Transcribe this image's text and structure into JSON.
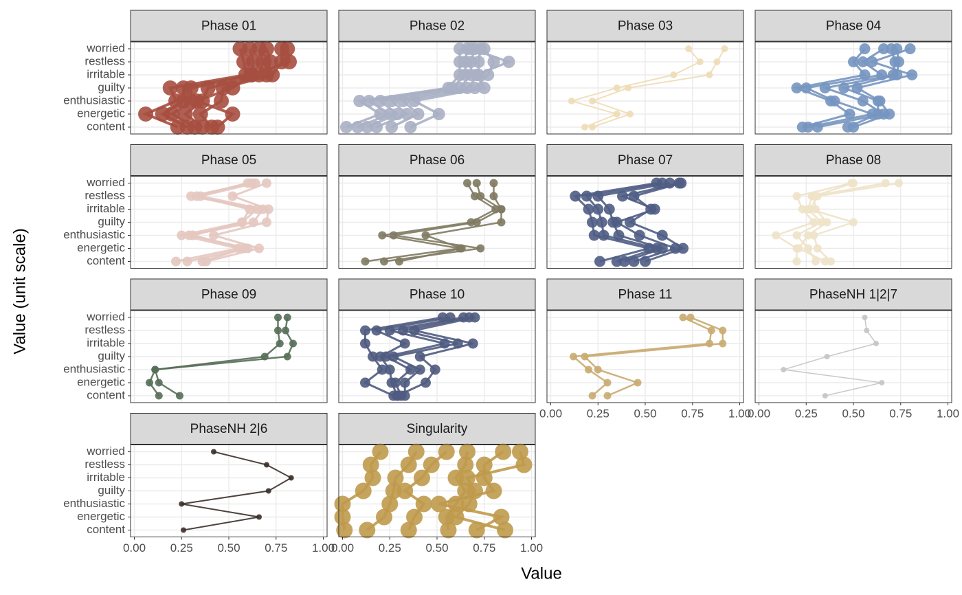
{
  "figure": {
    "x_label": "Value",
    "y_label": "Value (unit scale)"
  },
  "chart_data": [
    {
      "type": "line",
      "title": "Phase 01",
      "color": "#a64f40",
      "categories": [
        "content",
        "energetic",
        "enthusiastic",
        "guilty",
        "irritable",
        "restless",
        "worried"
      ],
      "xlim": [
        -0.02,
        1.02
      ],
      "xticks": [
        {
          "value": 0,
          "label": "0.00"
        },
        {
          "value": 0.25,
          "label": "0.25"
        },
        {
          "value": 0.5,
          "label": "0.50"
        },
        {
          "value": 0.75,
          "label": "0.75"
        },
        {
          "value": 1,
          "label": "1.00"
        }
      ],
      "grid": true,
      "series": [
        {
          "values": [
            0.23,
            0.06,
            0.22,
            0.19,
            0.59,
            0.58,
            0.56
          ]
        },
        {
          "values": [
            0.28,
            0.15,
            0.26,
            0.26,
            0.62,
            0.63,
            0.61
          ]
        },
        {
          "values": [
            0.32,
            0.2,
            0.3,
            0.3,
            0.66,
            0.68,
            0.66
          ]
        },
        {
          "values": [
            0.36,
            0.27,
            0.36,
            0.39,
            0.7,
            0.72,
            0.7
          ]
        },
        {
          "values": [
            0.41,
            0.35,
            0.46,
            0.47,
            0.73,
            0.78,
            0.78
          ]
        },
        {
          "values": [
            0.44,
            0.52,
            0.33,
            0.52,
            0.62,
            0.82,
            0.81
          ]
        }
      ]
    },
    {
      "type": "line",
      "title": "Phase 02",
      "color": "#aab0c4",
      "categories": [
        "content",
        "energetic",
        "enthusiastic",
        "guilty",
        "irritable",
        "restless",
        "worried"
      ],
      "xlim": [
        -0.02,
        1.02
      ],
      "xticks": [
        {
          "value": 0,
          "label": "0.00"
        },
        {
          "value": 0.25,
          "label": "0.25"
        },
        {
          "value": 0.5,
          "label": "0.50"
        },
        {
          "value": 0.75,
          "label": "0.75"
        },
        {
          "value": 1,
          "label": "1.00"
        }
      ],
      "grid": true,
      "series": [
        {
          "values": [
            0.02,
            0.2,
            0.09,
            0.56,
            0.62,
            0.62,
            0.62
          ]
        },
        {
          "values": [
            0.08,
            0.25,
            0.14,
            0.58,
            0.65,
            0.65,
            0.66
          ]
        },
        {
          "values": [
            0.13,
            0.29,
            0.2,
            0.62,
            0.68,
            0.68,
            0.7
          ]
        },
        {
          "values": [
            0.18,
            0.34,
            0.26,
            0.66,
            0.72,
            0.72,
            0.73
          ]
        },
        {
          "values": [
            0.26,
            0.4,
            0.32,
            0.7,
            0.77,
            0.8,
            0.75
          ]
        },
        {
          "values": [
            0.36,
            0.51,
            0.38,
            0.75,
            0.71,
            0.88,
            0.68
          ]
        }
      ]
    },
    {
      "type": "line",
      "title": "Phase 03",
      "color": "#eedcb5",
      "categories": [
        "content",
        "energetic",
        "enthusiastic",
        "guilty",
        "irritable",
        "restless",
        "worried"
      ],
      "xlim": [
        -0.02,
        1.02
      ],
      "xticks": [
        {
          "value": 0,
          "label": "0.00"
        },
        {
          "value": 0.25,
          "label": "0.25"
        },
        {
          "value": 0.5,
          "label": "0.50"
        },
        {
          "value": 0.75,
          "label": "0.75"
        },
        {
          "value": 1,
          "label": "1.00"
        }
      ],
      "grid": true,
      "series": [
        {
          "values": [
            0.18,
            0.35,
            0.11,
            0.35,
            0.65,
            0.79,
            0.73
          ]
        },
        {
          "values": [
            0.22,
            0.42,
            0.22,
            0.41,
            0.84,
            0.88,
            0.92
          ]
        }
      ]
    },
    {
      "type": "line",
      "title": "Phase 04",
      "color": "#7595c0",
      "categories": [
        "content",
        "energetic",
        "enthusiastic",
        "guilty",
        "irritable",
        "restless",
        "worried"
      ],
      "xlim": [
        -0.02,
        1.02
      ],
      "xticks": [
        {
          "value": 0,
          "label": "0.00"
        },
        {
          "value": 0.25,
          "label": "0.25"
        },
        {
          "value": 0.5,
          "label": "0.50"
        },
        {
          "value": 0.75,
          "label": "0.75"
        },
        {
          "value": 1,
          "label": "1.00"
        }
      ],
      "grid": true,
      "series": [
        {
          "values": [
            0.23,
            0.48,
            0.38,
            0.2,
            0.56,
            0.5,
            0.56
          ]
        },
        {
          "values": [
            0.26,
            0.6,
            0.4,
            0.25,
            0.65,
            0.55,
            0.66
          ]
        },
        {
          "values": [
            0.31,
            0.66,
            0.55,
            0.35,
            0.71,
            0.72,
            0.7
          ]
        },
        {
          "values": [
            0.47,
            0.63,
            0.63,
            0.45,
            0.73,
            0.74,
            0.73
          ]
        },
        {
          "values": [
            0.5,
            0.69,
            0.64,
            0.52,
            0.81,
            0.6,
            0.8
          ]
        }
      ]
    },
    {
      "type": "line",
      "title": "Phase 05",
      "color": "#e4c8c0",
      "categories": [
        "content",
        "energetic",
        "enthusiastic",
        "guilty",
        "irritable",
        "restless",
        "worried"
      ],
      "xlim": [
        -0.02,
        1.02
      ],
      "xticks": [
        {
          "value": 0,
          "label": "0.00"
        },
        {
          "value": 0.25,
          "label": "0.25"
        },
        {
          "value": 0.5,
          "label": "0.50"
        },
        {
          "value": 0.75,
          "label": "0.75"
        },
        {
          "value": 1,
          "label": "1.00"
        }
      ],
      "grid": true,
      "series": [
        {
          "values": [
            0.22,
            0.55,
            0.25,
            0.57,
            0.65,
            0.3,
            0.62
          ]
        },
        {
          "values": [
            0.28,
            0.6,
            0.29,
            0.63,
            0.68,
            0.35,
            0.64
          ]
        },
        {
          "values": [
            0.38,
            0.66,
            0.42,
            0.7,
            0.71,
            0.52,
            0.7
          ]
        },
        {
          "values": [
            0.36,
            0.58,
            0.31,
            0.57,
            0.61,
            0.33,
            0.6
          ]
        }
      ]
    },
    {
      "type": "line",
      "title": "Phase 06",
      "color": "#7f7a62",
      "categories": [
        "content",
        "energetic",
        "enthusiastic",
        "guilty",
        "irritable",
        "restless",
        "worried"
      ],
      "xlim": [
        -0.02,
        1.02
      ],
      "xticks": [
        {
          "value": 0,
          "label": "0.00"
        },
        {
          "value": 0.25,
          "label": "0.25"
        },
        {
          "value": 0.5,
          "label": "0.50"
        },
        {
          "value": 0.75,
          "label": "0.75"
        },
        {
          "value": 1,
          "label": "1.00"
        }
      ],
      "grid": true,
      "series": [
        {
          "values": [
            0.12,
            0.62,
            0.21,
            0.68,
            0.81,
            0.7,
            0.66
          ]
        },
        {
          "values": [
            0.22,
            0.73,
            0.27,
            0.71,
            0.84,
            0.73,
            0.71
          ]
        },
        {
          "values": [
            0.3,
            0.63,
            0.44,
            0.84,
            0.84,
            0.8,
            0.8
          ]
        }
      ]
    },
    {
      "type": "line",
      "title": "Phase 07",
      "color": "#4f5d84",
      "categories": [
        "content",
        "energetic",
        "enthusiastic",
        "guilty",
        "irritable",
        "restless",
        "worried"
      ],
      "xlim": [
        -0.02,
        1.02
      ],
      "xticks": [
        {
          "value": 0,
          "label": "0.00"
        },
        {
          "value": 0.25,
          "label": "0.25"
        },
        {
          "value": 0.5,
          "label": "0.50"
        },
        {
          "value": 0.75,
          "label": "0.75"
        },
        {
          "value": 1,
          "label": "1.00"
        }
      ],
      "grid": true,
      "series": [
        {
          "values": [
            0.26,
            0.52,
            0.23,
            0.22,
            0.2,
            0.13,
            0.56
          ]
        },
        {
          "values": [
            0.35,
            0.56,
            0.28,
            0.27,
            0.25,
            0.19,
            0.59
          ]
        },
        {
          "values": [
            0.39,
            0.59,
            0.36,
            0.33,
            0.31,
            0.25,
            0.63
          ]
        },
        {
          "values": [
            0.44,
            0.66,
            0.47,
            0.35,
            0.55,
            0.38,
            0.68
          ]
        },
        {
          "values": [
            0.5,
            0.7,
            0.59,
            0.42,
            0.53,
            0.44,
            0.69
          ]
        }
      ]
    },
    {
      "type": "line",
      "title": "Phase 08",
      "color": "#eee2c8",
      "categories": [
        "content",
        "energetic",
        "enthusiastic",
        "guilty",
        "irritable",
        "restless",
        "worried"
      ],
      "xlim": [
        -0.02,
        1.02
      ],
      "xticks": [
        {
          "value": 0,
          "label": "0.00"
        },
        {
          "value": 0.25,
          "label": "0.25"
        },
        {
          "value": 0.5,
          "label": "0.50"
        },
        {
          "value": 0.75,
          "label": "0.75"
        },
        {
          "value": 1,
          "label": "1.00"
        }
      ],
      "grid": true,
      "series": [
        {
          "values": [
            0.2,
            0.2,
            0.09,
            0.29,
            0.23,
            0.2,
            0.49
          ]
        },
        {
          "values": [
            0.3,
            0.26,
            0.2,
            0.33,
            0.26,
            0.28,
            0.67
          ]
        },
        {
          "values": [
            0.38,
            0.31,
            0.29,
            0.5,
            0.27,
            0.31,
            0.74
          ]
        },
        {
          "values": [
            0.35,
            0.21,
            0.26,
            0.36,
            0.3,
            0.29,
            0.5
          ]
        }
      ]
    },
    {
      "type": "line",
      "title": "Phase 09",
      "color": "#566e58",
      "categories": [
        "content",
        "energetic",
        "enthusiastic",
        "guilty",
        "irritable",
        "restless",
        "worried"
      ],
      "xlim": [
        -0.02,
        1.02
      ],
      "xticks": [
        {
          "value": 0,
          "label": "0.00"
        },
        {
          "value": 0.25,
          "label": "0.25"
        },
        {
          "value": 0.5,
          "label": "0.50"
        },
        {
          "value": 0.75,
          "label": "0.75"
        },
        {
          "value": 1,
          "label": "1.00"
        }
      ],
      "grid": true,
      "series": [
        {
          "values": [
            0.13,
            0.08,
            0.11,
            0.69,
            0.77,
            0.76,
            0.76
          ]
        },
        {
          "values": [
            0.24,
            0.13,
            0.11,
            0.81,
            0.84,
            0.8,
            0.81
          ]
        }
      ]
    },
    {
      "type": "line",
      "title": "Phase 10",
      "color": "#4f5b80",
      "categories": [
        "content",
        "energetic",
        "enthusiastic",
        "guilty",
        "irritable",
        "restless",
        "worried"
      ],
      "xlim": [
        -0.02,
        1.02
      ],
      "xticks": [
        {
          "value": 0,
          "label": "0.00"
        },
        {
          "value": 0.25,
          "label": "0.25"
        },
        {
          "value": 0.5,
          "label": "0.50"
        },
        {
          "value": 0.75,
          "label": "0.75"
        },
        {
          "value": 1,
          "label": "1.00"
        }
      ],
      "grid": true,
      "series": [
        {
          "values": [
            0.27,
            0.12,
            0.21,
            0.16,
            0.12,
            0.12,
            0.53
          ]
        },
        {
          "values": [
            0.29,
            0.26,
            0.25,
            0.2,
            0.33,
            0.18,
            0.57
          ]
        },
        {
          "values": [
            0.31,
            0.28,
            0.36,
            0.23,
            0.54,
            0.25,
            0.64
          ]
        },
        {
          "values": [
            0.33,
            0.33,
            0.41,
            0.27,
            0.61,
            0.32,
            0.67
          ]
        },
        {
          "values": [
            0.29,
            0.44,
            0.49,
            0.41,
            0.69,
            0.38,
            0.7
          ]
        }
      ]
    },
    {
      "type": "line",
      "title": "Phase 11",
      "color": "#c9ab70",
      "categories": [
        "content",
        "energetic",
        "enthusiastic",
        "guilty",
        "irritable",
        "restless",
        "worried"
      ],
      "xlim": [
        -0.02,
        1.02
      ],
      "xticks": [
        {
          "value": 0,
          "label": "0.00"
        },
        {
          "value": 0.25,
          "label": "0.25"
        },
        {
          "value": 0.5,
          "label": "0.50"
        },
        {
          "value": 0.75,
          "label": "0.75"
        },
        {
          "value": 1,
          "label": "1.00"
        }
      ],
      "grid": true,
      "series": [
        {
          "values": [
            0.22,
            0.3,
            0.2,
            0.12,
            0.84,
            0.85,
            0.7
          ]
        },
        {
          "values": [
            0.3,
            0.46,
            0.25,
            0.18,
            0.91,
            0.91,
            0.74
          ]
        }
      ]
    },
    {
      "type": "line",
      "title": "PhaseNH 1|2|7",
      "color": "#c4c4c8",
      "categories": [
        "content",
        "energetic",
        "enthusiastic",
        "guilty",
        "irritable",
        "restless",
        "worried"
      ],
      "xlim": [
        -0.02,
        1.02
      ],
      "xticks": [
        {
          "value": 0,
          "label": "0.00"
        },
        {
          "value": 0.25,
          "label": "0.25"
        },
        {
          "value": 0.5,
          "label": "0.50"
        },
        {
          "value": 0.75,
          "label": "0.75"
        },
        {
          "value": 1,
          "label": "1.00"
        }
      ],
      "grid": true,
      "series": [
        {
          "values": [
            0.35,
            0.65,
            0.13,
            0.36,
            0.62,
            0.57,
            0.56
          ]
        }
      ]
    },
    {
      "type": "line",
      "title": "PhaseNH 2|6",
      "color": "#3b2f2a",
      "categories": [
        "content",
        "energetic",
        "enthusiastic",
        "guilty",
        "irritable",
        "restless",
        "worried"
      ],
      "xlim": [
        -0.02,
        1.02
      ],
      "xticks": [
        {
          "value": 0,
          "label": "0.00"
        },
        {
          "value": 0.25,
          "label": "0.25"
        },
        {
          "value": 0.5,
          "label": "0.50"
        },
        {
          "value": 0.75,
          "label": "0.75"
        },
        {
          "value": 1,
          "label": "1.00"
        }
      ],
      "grid": true,
      "series": [
        {
          "values": [
            0.26,
            0.66,
            0.25,
            0.71,
            0.83,
            0.7,
            0.42
          ]
        }
      ]
    },
    {
      "type": "line",
      "title": "Singularity",
      "color": "#bf9a4c",
      "categories": [
        "content",
        "energetic",
        "enthusiastic",
        "guilty",
        "irritable",
        "restless",
        "worried"
      ],
      "xlim": [
        -0.02,
        1.02
      ],
      "xticks": [
        {
          "value": 0,
          "label": "0.00"
        },
        {
          "value": 0.25,
          "label": "0.25"
        },
        {
          "value": 0.5,
          "label": "0.50"
        },
        {
          "value": 0.75,
          "label": "0.75"
        },
        {
          "value": 1,
          "label": "1.00"
        }
      ],
      "grid": true,
      "series": [
        {
          "values": [
            0.01,
            0.0,
            0.0,
            0.11,
            0.16,
            0.15,
            0.2
          ]
        },
        {
          "values": [
            0.13,
            0.22,
            0.25,
            0.27,
            0.28,
            0.35,
            0.39
          ]
        },
        {
          "values": [
            0.35,
            0.38,
            0.43,
            0.33,
            0.42,
            0.47,
            0.55
          ]
        },
        {
          "values": [
            0.56,
            0.55,
            0.6,
            0.65,
            0.6,
            0.65,
            0.66
          ]
        },
        {
          "values": [
            0.71,
            0.84,
            0.51,
            0.8,
            0.75,
            0.75,
            0.85
          ]
        },
        {
          "values": [
            0.86,
            0.6,
            0.67,
            0.7,
            0.66,
            0.96,
            0.94
          ]
        }
      ]
    }
  ]
}
